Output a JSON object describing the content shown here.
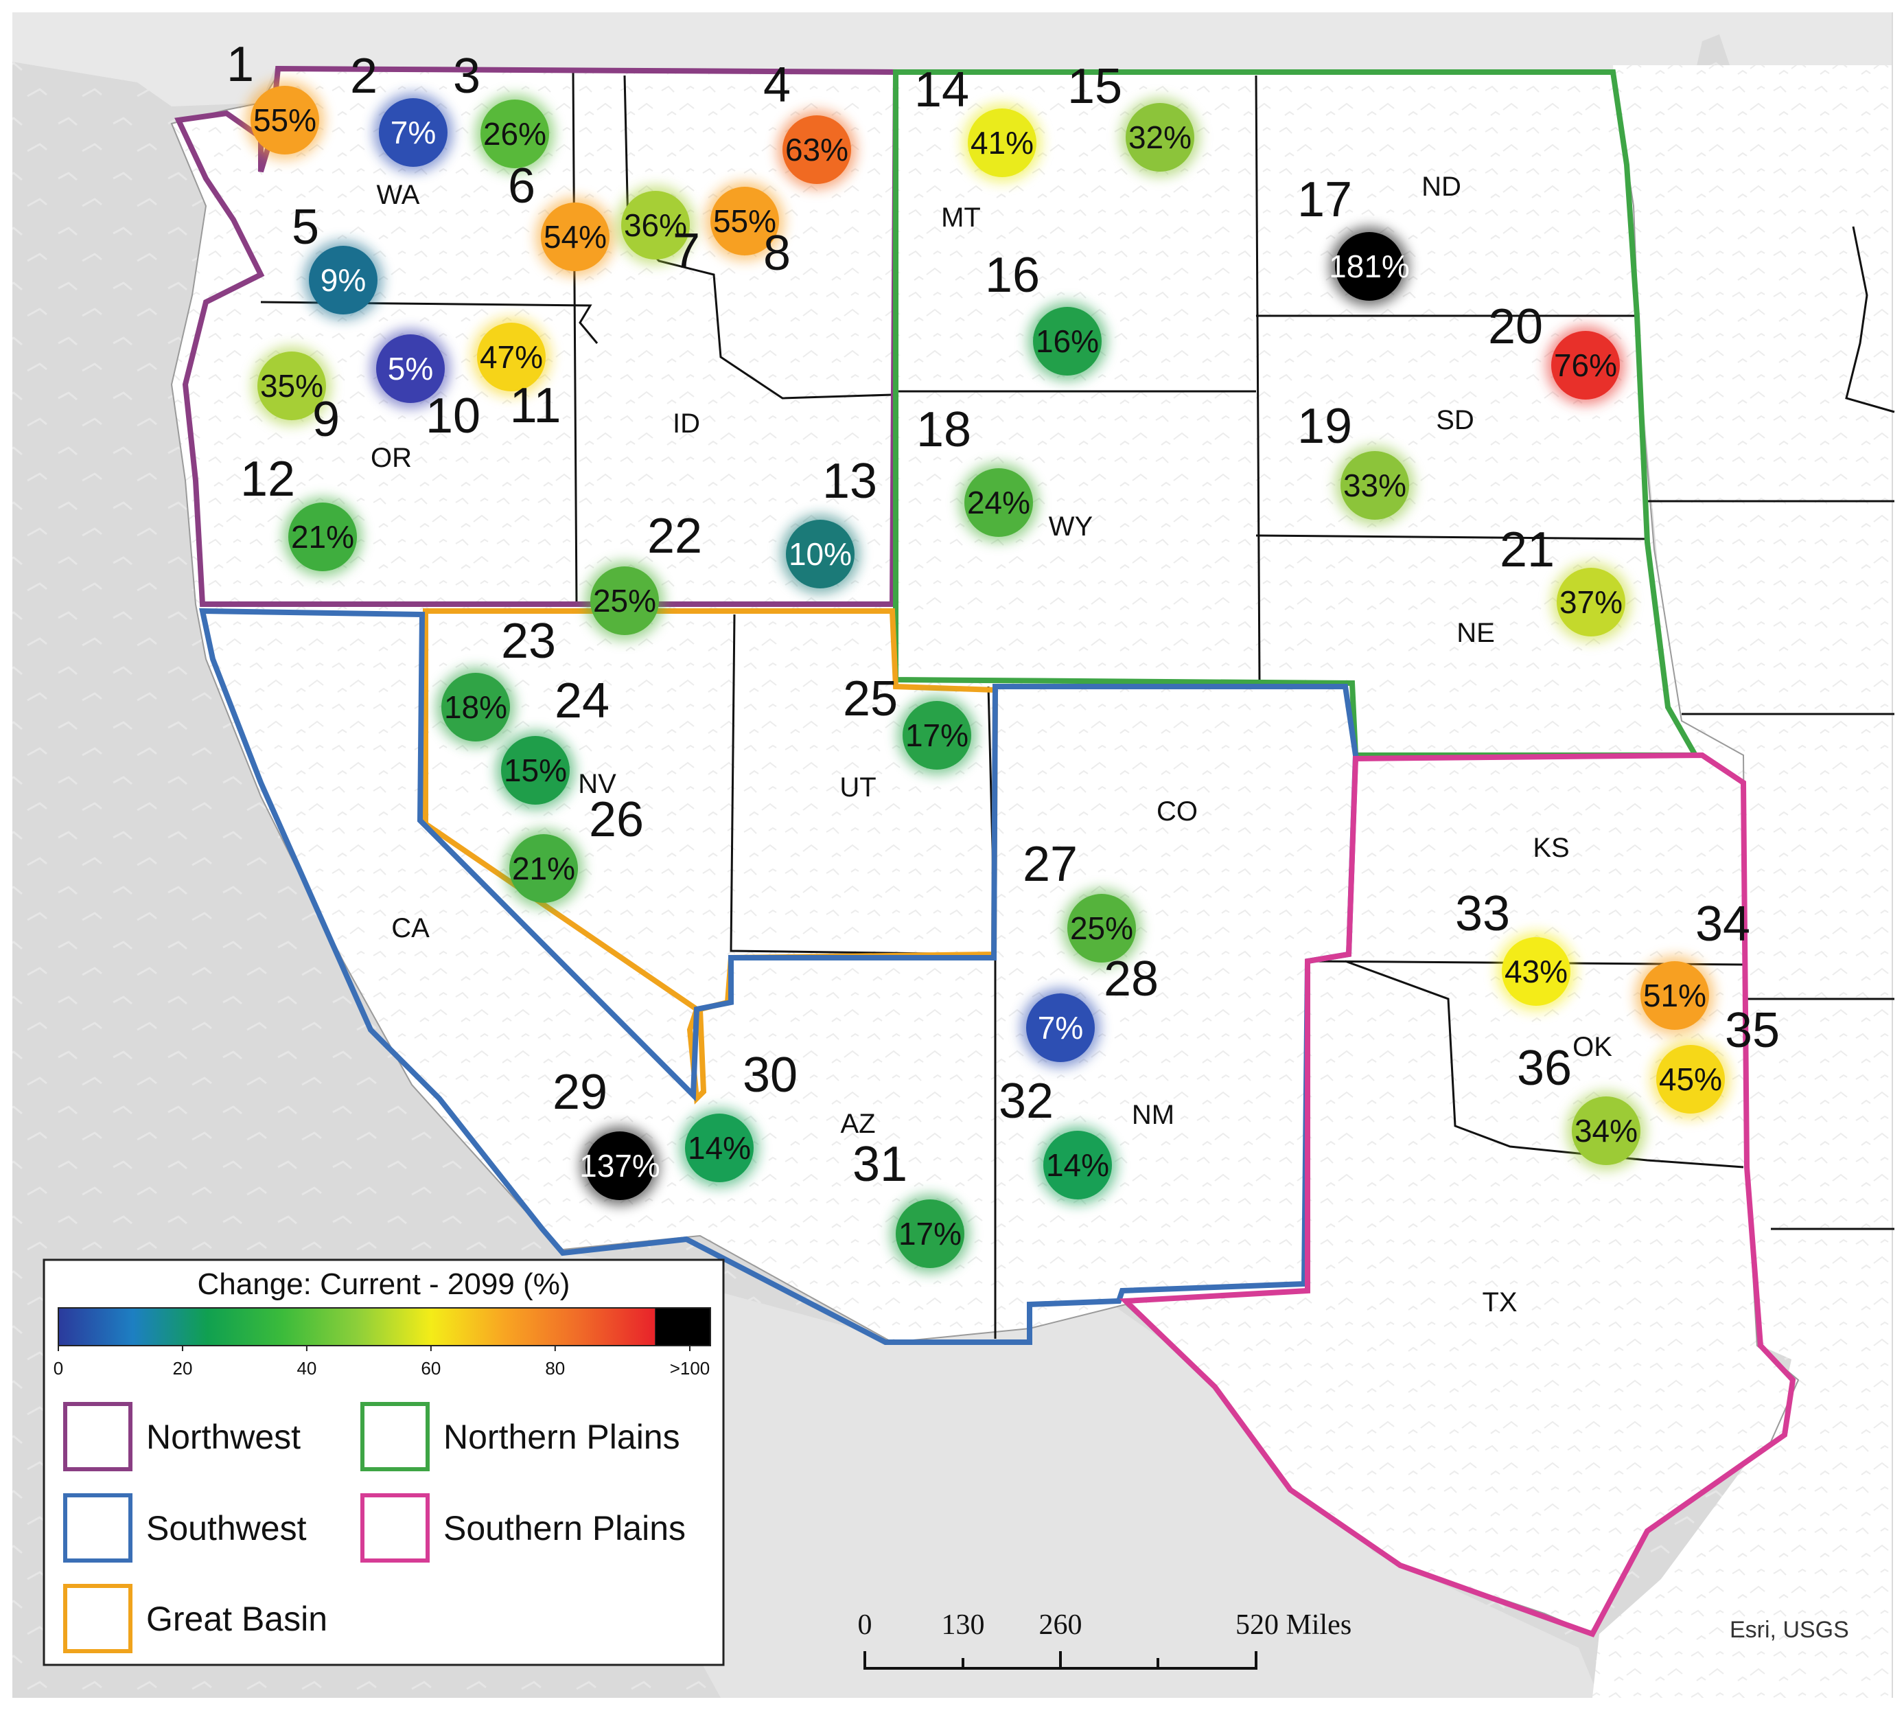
{
  "legend": {
    "title": "Change: Current - 2099 (%)",
    "ticks": [
      "0",
      "20",
      "40",
      "60",
      "80",
      ">100"
    ],
    "colorbar": [
      "#2b3a9c",
      "#1d7fc2",
      "#10a050",
      "#3bbb3b",
      "#8ccf3a",
      "#f4ec18",
      "#f8a422",
      "#f06a28",
      "#e8232a",
      "#000000"
    ],
    "regions": [
      {
        "label": "Northwest",
        "color": "#8a3e83"
      },
      {
        "label": "Northern Plains",
        "color": "#3ea545"
      },
      {
        "label": "Southwest",
        "color": "#3b6fb6"
      },
      {
        "label": "Southern Plains",
        "color": "#d63c95"
      },
      {
        "label": "Great Basin",
        "color": "#f0a31c"
      }
    ]
  },
  "states": [
    "WA",
    "OR",
    "ID",
    "MT",
    "ND",
    "SD",
    "WY",
    "NE",
    "NV",
    "UT",
    "CO",
    "CA",
    "KS",
    "AZ",
    "NM",
    "OK",
    "TX"
  ],
  "sites": [
    {
      "num": "1",
      "pct": "55%",
      "value": 55,
      "color": "#f7a022"
    },
    {
      "num": "2",
      "pct": "7%",
      "value": 7,
      "color": "#2d4fb3"
    },
    {
      "num": "3",
      "pct": "26%",
      "value": 26,
      "color": "#58b93a"
    },
    {
      "num": "4",
      "pct": "63%",
      "value": 63,
      "color": "#f06a22"
    },
    {
      "num": "5",
      "pct": "9%",
      "value": 9,
      "color": "#1a6f8f"
    },
    {
      "num": "6",
      "pct": "54%",
      "value": 54,
      "color": "#f7a022"
    },
    {
      "num": "7",
      "pct": "36%",
      "value": 36,
      "color": "#a6cf36"
    },
    {
      "num": "8",
      "pct": "55%",
      "value": 55,
      "color": "#f7a022"
    },
    {
      "num": "9",
      "pct": "35%",
      "value": 35,
      "color": "#a6cf36"
    },
    {
      "num": "10",
      "pct": "5%",
      "value": 5,
      "color": "#3b3fae"
    },
    {
      "num": "11",
      "pct": "47%",
      "value": 47,
      "color": "#f6d418"
    },
    {
      "num": "12",
      "pct": "21%",
      "value": 21,
      "color": "#3fae3e"
    },
    {
      "num": "13",
      "pct": "10%",
      "value": 10,
      "color": "#1b7a78"
    },
    {
      "num": "14",
      "pct": "41%",
      "value": 41,
      "color": "#eaeb1c"
    },
    {
      "num": "15",
      "pct": "32%",
      "value": 32,
      "color": "#8cc43a"
    },
    {
      "num": "16",
      "pct": "16%",
      "value": 16,
      "color": "#22a04a"
    },
    {
      "num": "17",
      "pct": "181%",
      "value": 181,
      "color": "#000000"
    },
    {
      "num": "18",
      "pct": "24%",
      "value": 24,
      "color": "#4fb23d"
    },
    {
      "num": "19",
      "pct": "33%",
      "value": 33,
      "color": "#8cc43a"
    },
    {
      "num": "20",
      "pct": "76%",
      "value": 76,
      "color": "#e8302a"
    },
    {
      "num": "21",
      "pct": "37%",
      "value": 37,
      "color": "#c4d92c"
    },
    {
      "num": "22",
      "pct": "25%",
      "value": 25,
      "color": "#55b33c"
    },
    {
      "num": "23",
      "pct": "18%",
      "value": 18,
      "color": "#30a446"
    },
    {
      "num": "24",
      "pct": "15%",
      "value": 15,
      "color": "#1f9e4a"
    },
    {
      "num": "25",
      "pct": "17%",
      "value": 17,
      "color": "#28a248"
    },
    {
      "num": "26",
      "pct": "21%",
      "value": 21,
      "color": "#45ae40"
    },
    {
      "num": "27",
      "pct": "25%",
      "value": 25,
      "color": "#55b33c"
    },
    {
      "num": "28",
      "pct": "7%",
      "value": 7,
      "color": "#2d4fb3"
    },
    {
      "num": "29",
      "pct": "137%",
      "value": 137,
      "color": "#000000"
    },
    {
      "num": "30",
      "pct": "14%",
      "value": 14,
      "color": "#18a055"
    },
    {
      "num": "31",
      "pct": "17%",
      "value": 17,
      "color": "#28a248"
    },
    {
      "num": "32",
      "pct": "14%",
      "value": 14,
      "color": "#18a055"
    },
    {
      "num": "33",
      "pct": "43%",
      "value": 43,
      "color": "#f4ec18"
    },
    {
      "num": "34",
      "pct": "51%",
      "value": 51,
      "color": "#f7a022"
    },
    {
      "num": "35",
      "pct": "45%",
      "value": 45,
      "color": "#f6d818"
    },
    {
      "num": "36",
      "pct": "34%",
      "value": 34,
      "color": "#9ccb36"
    }
  ],
  "scale_bar": {
    "ticks": [
      "0",
      "130",
      "260",
      "520 Miles"
    ]
  },
  "credit": "Esri, USGS"
}
